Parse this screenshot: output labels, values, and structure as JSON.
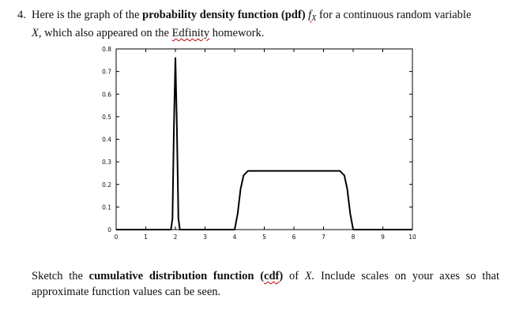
{
  "question": {
    "number": "4.",
    "line1_a": "Here is the graph of the",
    "line1_bold": "probability density function (pdf)",
    "f_symbol": "f",
    "f_subscript": "X",
    "line1_b": "for a continuous random variable",
    "var_x": "X,",
    "line2_a": "which also appeared on the",
    "edfinity": "Edfinity",
    "line2_b": "homework."
  },
  "prompt": {
    "a": "Sketch the",
    "bold": "cumulative distribution function (",
    "cdf": "cdf",
    "bold_close": ")",
    "b": "of",
    "var_x": "X.",
    "c": "Include scales on your axes so that approximate function values can be seen."
  },
  "chart_data": {
    "type": "line",
    "title": "",
    "xlabel": "",
    "ylabel": "",
    "xlim": [
      0,
      10
    ],
    "ylim": [
      0,
      0.8
    ],
    "x_ticks": [
      "0",
      "1",
      "2",
      "3",
      "4",
      "5",
      "6",
      "7",
      "8",
      "9",
      "10"
    ],
    "y_ticks": [
      "0",
      "0.1",
      "0.2",
      "0.3",
      "0.4",
      "0.5",
      "0.6",
      "0.7",
      "0.8"
    ],
    "grid": false,
    "series": [
      {
        "x": [
          0,
          1.85,
          1.9,
          1.95,
          2.0,
          2.05,
          2.1,
          2.15,
          4.0,
          4.1,
          4.2,
          4.3,
          4.45,
          7.55,
          7.7,
          7.8,
          7.9,
          8.0,
          10
        ],
        "y": [
          0,
          0,
          0.05,
          0.45,
          0.76,
          0.45,
          0.05,
          0,
          0,
          0.07,
          0.18,
          0.24,
          0.26,
          0.26,
          0.24,
          0.18,
          0.07,
          0,
          0
        ]
      }
    ],
    "colors": {
      "line": "#000000",
      "axes": "#000000"
    }
  }
}
